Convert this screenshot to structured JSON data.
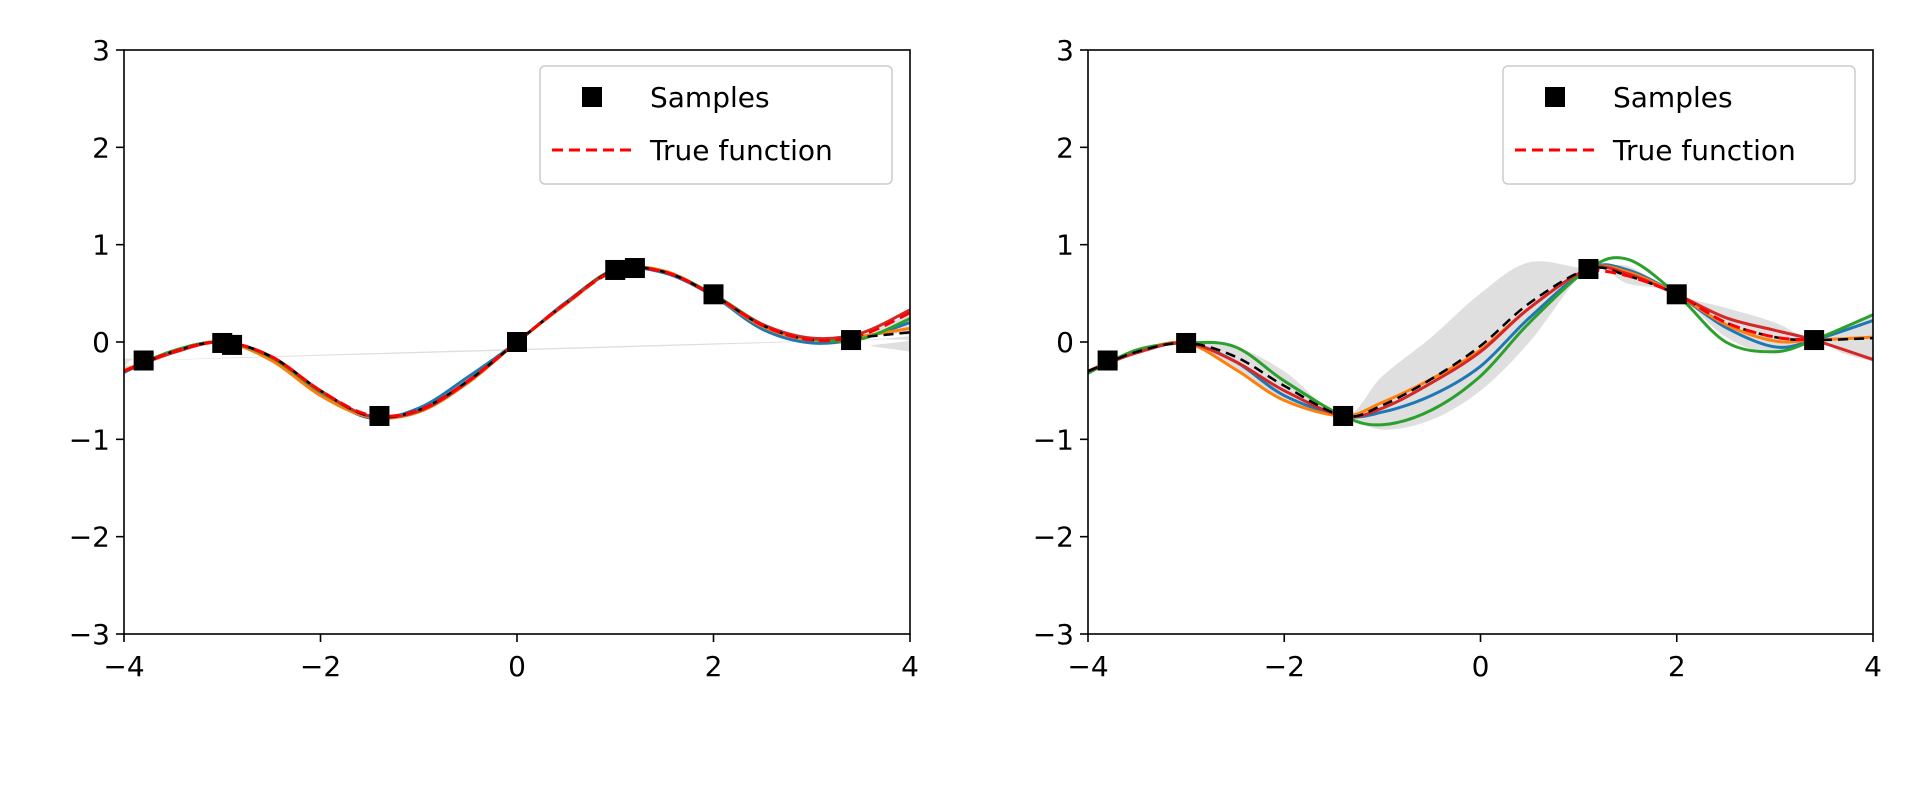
{
  "chart_data": [
    {
      "type": "line",
      "panel": "left",
      "xlim": [
        -4,
        4
      ],
      "ylim": [
        -3,
        3
      ],
      "xticks": [
        -4,
        -2,
        0,
        2,
        4
      ],
      "yticks": [
        -3,
        -2,
        -1,
        0,
        1,
        2,
        3
      ],
      "xtick_labels": [
        "−4",
        "−2",
        "0",
        "2",
        "4"
      ],
      "ytick_labels": [
        "−3",
        "−2",
        "−1",
        "0",
        "1",
        "2",
        "3"
      ],
      "legend": {
        "position": "top-right",
        "entries": [
          {
            "label": "Samples",
            "marker": "square",
            "color": "#000000"
          },
          {
            "label": "True function",
            "style": "dashed",
            "color": "#ff0000"
          }
        ]
      },
      "samples": {
        "x": [
          -3.8,
          -3.0,
          -2.9,
          -1.4,
          0.0,
          1.0,
          1.2,
          2.0,
          3.4
        ],
        "y": [
          -0.19,
          -0.01,
          -0.03,
          -0.76,
          0.0,
          0.74,
          0.76,
          0.49,
          0.02
        ]
      },
      "true_function": {
        "x": [
          -4,
          -3.5,
          -3,
          -2.5,
          -2,
          -1.5,
          -1,
          -0.5,
          0,
          0.5,
          1,
          1.5,
          2,
          2.5,
          3,
          3.5,
          4
        ],
        "y": [
          -0.3,
          -0.1,
          0.0,
          -0.15,
          -0.5,
          -0.75,
          -0.7,
          -0.4,
          0.0,
          0.4,
          0.73,
          0.72,
          0.48,
          0.17,
          0.02,
          0.07,
          0.3
        ]
      },
      "mean_prediction": {
        "x": [
          -4,
          -3.5,
          -3,
          -2.5,
          -2,
          -1.5,
          -1,
          -0.5,
          0,
          0.5,
          1,
          1.5,
          2,
          2.5,
          3,
          3.5,
          4
        ],
        "y": [
          -0.3,
          -0.1,
          0.0,
          -0.15,
          -0.5,
          -0.76,
          -0.7,
          -0.4,
          0.0,
          0.4,
          0.74,
          0.72,
          0.48,
          0.17,
          0.02,
          0.05,
          0.1
        ]
      },
      "uncertainty_band": {
        "x": [
          -4,
          -3.9,
          -3.8,
          3.4,
          3.6,
          3.8,
          4
        ],
        "lower": [
          -0.35,
          -0.25,
          -0.19,
          0.02,
          -0.04,
          -0.07,
          -0.1
        ],
        "upper": [
          -0.25,
          -0.17,
          -0.19,
          0.02,
          0.12,
          0.2,
          0.28
        ]
      },
      "posterior_samples": [
        {
          "color": "#1f77b4",
          "x": [
            -4,
            -3.5,
            -3,
            -2.5,
            -2,
            -1.5,
            -1,
            -0.5,
            0,
            0.5,
            1,
            1.5,
            2,
            2.5,
            3,
            3.5,
            4
          ],
          "y": [
            -0.31,
            -0.1,
            0.0,
            -0.17,
            -0.52,
            -0.78,
            -0.68,
            -0.36,
            0.0,
            0.41,
            0.74,
            0.71,
            0.47,
            0.13,
            -0.01,
            0.04,
            0.2
          ]
        },
        {
          "color": "#ff7f0e",
          "x": [
            -4,
            -3.5,
            -3,
            -2.5,
            -2,
            -1.5,
            -1,
            -0.5,
            0,
            0.5,
            1,
            1.5,
            2,
            2.5,
            3,
            3.5,
            4
          ],
          "y": [
            -0.29,
            -0.1,
            0.0,
            -0.19,
            -0.55,
            -0.77,
            -0.72,
            -0.42,
            0.0,
            0.39,
            0.74,
            0.73,
            0.48,
            0.16,
            0.02,
            0.06,
            0.14
          ]
        },
        {
          "color": "#2ca02c",
          "x": [
            -4,
            -3.5,
            -3,
            -2.5,
            -2,
            -1.5,
            -1,
            -0.5,
            0,
            0.5,
            1,
            1.5,
            2,
            2.5,
            3,
            3.5,
            4
          ],
          "y": [
            -0.3,
            -0.09,
            0.0,
            -0.16,
            -0.51,
            -0.76,
            -0.71,
            -0.4,
            0.0,
            0.4,
            0.75,
            0.72,
            0.49,
            0.18,
            0.03,
            0.03,
            0.24
          ]
        },
        {
          "color": "#d62728",
          "x": [
            -4,
            -3.5,
            -3,
            -2.5,
            -2,
            -1.5,
            -1,
            -0.5,
            0,
            0.5,
            1,
            1.5,
            2,
            2.5,
            3,
            3.5,
            4
          ],
          "y": [
            -0.3,
            -0.11,
            0.0,
            -0.15,
            -0.5,
            -0.76,
            -0.71,
            -0.41,
            0.0,
            0.4,
            0.74,
            0.72,
            0.48,
            0.18,
            0.04,
            0.09,
            0.33
          ]
        }
      ]
    },
    {
      "type": "line",
      "panel": "right",
      "xlim": [
        -4,
        4
      ],
      "ylim": [
        -3,
        3
      ],
      "xticks": [
        -4,
        -2,
        0,
        2,
        4
      ],
      "yticks": [
        -3,
        -2,
        -1,
        0,
        1,
        2,
        3
      ],
      "xtick_labels": [
        "−4",
        "−2",
        "0",
        "2",
        "4"
      ],
      "ytick_labels": [
        "−3",
        "−2",
        "−1",
        "0",
        "1",
        "2",
        "3"
      ],
      "legend": {
        "position": "top-right",
        "entries": [
          {
            "label": "Samples",
            "marker": "square",
            "color": "#000000"
          },
          {
            "label": "True function",
            "style": "dashed",
            "color": "#ff0000"
          }
        ]
      },
      "samples": {
        "x": [
          -3.8,
          -3.0,
          -1.4,
          1.1,
          2.0,
          3.4
        ],
        "y": [
          -0.19,
          -0.01,
          -0.76,
          0.75,
          0.49,
          0.02
        ]
      },
      "true_function": {
        "x": [
          1.1,
          1.5,
          2,
          2.5,
          3,
          3.4
        ],
        "y": [
          0.75,
          0.68,
          0.49,
          0.2,
          0.05,
          0.02
        ]
      },
      "mean_prediction": {
        "x": [
          -4,
          -3.5,
          -3,
          -2.5,
          -2,
          -1.4,
          -1,
          -0.5,
          0,
          0.5,
          1.1,
          1.5,
          2,
          2.5,
          3,
          3.4,
          4
        ],
        "y": [
          -0.3,
          -0.1,
          -0.01,
          -0.15,
          -0.45,
          -0.76,
          -0.65,
          -0.38,
          -0.04,
          0.4,
          0.75,
          0.68,
          0.49,
          0.2,
          0.05,
          0.02,
          0.04
        ]
      },
      "uncertainty_band": {
        "x": [
          -4,
          -3.8,
          -3.4,
          -3.0,
          -2.5,
          -2.0,
          -1.4,
          -1.0,
          -0.5,
          0.0,
          0.5,
          1.1,
          1.5,
          2.0,
          2.5,
          3.0,
          3.4,
          3.7,
          4.0
        ],
        "lower": [
          -0.32,
          -0.19,
          -0.09,
          -0.01,
          -0.28,
          -0.6,
          -0.76,
          -0.9,
          -0.8,
          -0.5,
          0.0,
          0.75,
          0.6,
          0.49,
          0.05,
          -0.12,
          0.02,
          -0.12,
          -0.2
        ],
        "upper": [
          -0.28,
          -0.19,
          -0.07,
          -0.01,
          -0.05,
          -0.3,
          -0.76,
          -0.35,
          0.05,
          0.5,
          0.82,
          0.75,
          0.78,
          0.49,
          0.35,
          0.2,
          0.02,
          0.15,
          0.28
        ]
      },
      "posterior_samples": [
        {
          "color": "#1f77b4",
          "x": [
            -4,
            -3.5,
            -3,
            -2.5,
            -2,
            -1.4,
            -1,
            -0.5,
            0,
            0.5,
            1.1,
            1.5,
            2,
            2.5,
            3,
            3.4,
            4
          ],
          "y": [
            -0.31,
            -0.1,
            -0.01,
            -0.2,
            -0.55,
            -0.76,
            -0.72,
            -0.55,
            -0.25,
            0.25,
            0.75,
            0.74,
            0.49,
            0.15,
            -0.05,
            0.02,
            0.22
          ]
        },
        {
          "color": "#ff7f0e",
          "x": [
            -4,
            -3.5,
            -3,
            -2.5,
            -2,
            -1.4,
            -1,
            -0.5,
            0,
            0.5,
            1.1,
            1.5,
            2,
            2.5,
            3,
            3.4,
            4
          ],
          "y": [
            -0.3,
            -0.1,
            -0.01,
            -0.28,
            -0.6,
            -0.76,
            -0.62,
            -0.38,
            -0.08,
            0.35,
            0.75,
            0.72,
            0.49,
            0.18,
            0.01,
            0.02,
            0.05
          ]
        },
        {
          "color": "#2ca02c",
          "x": [
            -4,
            -3.5,
            -3,
            -2.5,
            -2,
            -1.4,
            -1,
            -0.5,
            0,
            0.5,
            1.1,
            1.5,
            2,
            2.5,
            3,
            3.4,
            4
          ],
          "y": [
            -0.32,
            -0.08,
            -0.01,
            -0.05,
            -0.4,
            -0.76,
            -0.85,
            -0.7,
            -0.35,
            0.2,
            0.75,
            0.85,
            0.49,
            0.0,
            -0.1,
            0.02,
            0.28
          ]
        },
        {
          "color": "#d62728",
          "x": [
            -4,
            -3.5,
            -3,
            -2.5,
            -2,
            -1.4,
            -1,
            -0.5,
            0,
            0.5,
            1.1,
            1.5,
            2,
            2.5,
            3,
            3.4,
            4
          ],
          "y": [
            -0.3,
            -0.11,
            -0.01,
            -0.2,
            -0.5,
            -0.76,
            -0.68,
            -0.42,
            -0.1,
            0.35,
            0.75,
            0.7,
            0.49,
            0.25,
            0.12,
            0.02,
            -0.18
          ]
        }
      ]
    }
  ]
}
